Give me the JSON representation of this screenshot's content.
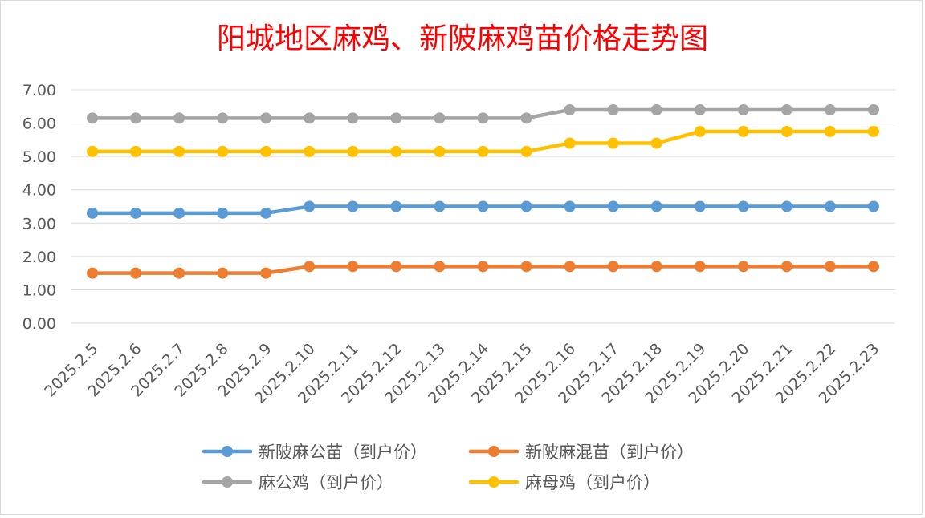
{
  "chart_data": {
    "type": "line",
    "title": "阳城地区麻鸡、新陂麻鸡苗价格走势图",
    "xlabel": "",
    "ylabel": "",
    "ylim": [
      0,
      7
    ],
    "y_ticks": [
      "0.00",
      "1.00",
      "2.00",
      "3.00",
      "4.00",
      "5.00",
      "6.00",
      "7.00"
    ],
    "grid": true,
    "legend_position": "bottom",
    "categories": [
      "2025.2.5",
      "2025.2.6",
      "2025.2.7",
      "2025.2.8",
      "2025.2.9",
      "2025.2.10",
      "2025.2.11",
      "2025.2.12",
      "2025.2.13",
      "2025.2.14",
      "2025.2.15",
      "2025.2.16",
      "2025.2.17",
      "2025.2.18",
      "2025.2.19",
      "2025.2.20",
      "2025.2.21",
      "2025.2.22",
      "2025.2.23"
    ],
    "series": [
      {
        "name": "新陂麻公苗（到户价）",
        "color": "#5b9bd5",
        "values": [
          3.3,
          3.3,
          3.3,
          3.3,
          3.3,
          3.5,
          3.5,
          3.5,
          3.5,
          3.5,
          3.5,
          3.5,
          3.5,
          3.5,
          3.5,
          3.5,
          3.5,
          3.5,
          3.5
        ]
      },
      {
        "name": "新陂麻混苗（到户价）",
        "color": "#ed7d31",
        "values": [
          1.5,
          1.5,
          1.5,
          1.5,
          1.5,
          1.7,
          1.7,
          1.7,
          1.7,
          1.7,
          1.7,
          1.7,
          1.7,
          1.7,
          1.7,
          1.7,
          1.7,
          1.7,
          1.7
        ]
      },
      {
        "name": "麻公鸡（到户价）",
        "color": "#a5a5a5",
        "values": [
          6.15,
          6.15,
          6.15,
          6.15,
          6.15,
          6.15,
          6.15,
          6.15,
          6.15,
          6.15,
          6.15,
          6.4,
          6.4,
          6.4,
          6.4,
          6.4,
          6.4,
          6.4,
          6.4
        ]
      },
      {
        "name": "麻母鸡（到户价）",
        "color": "#ffc000",
        "values": [
          5.15,
          5.15,
          5.15,
          5.15,
          5.15,
          5.15,
          5.15,
          5.15,
          5.15,
          5.15,
          5.15,
          5.4,
          5.4,
          5.4,
          5.75,
          5.75,
          5.75,
          5.75,
          5.75
        ]
      }
    ]
  }
}
